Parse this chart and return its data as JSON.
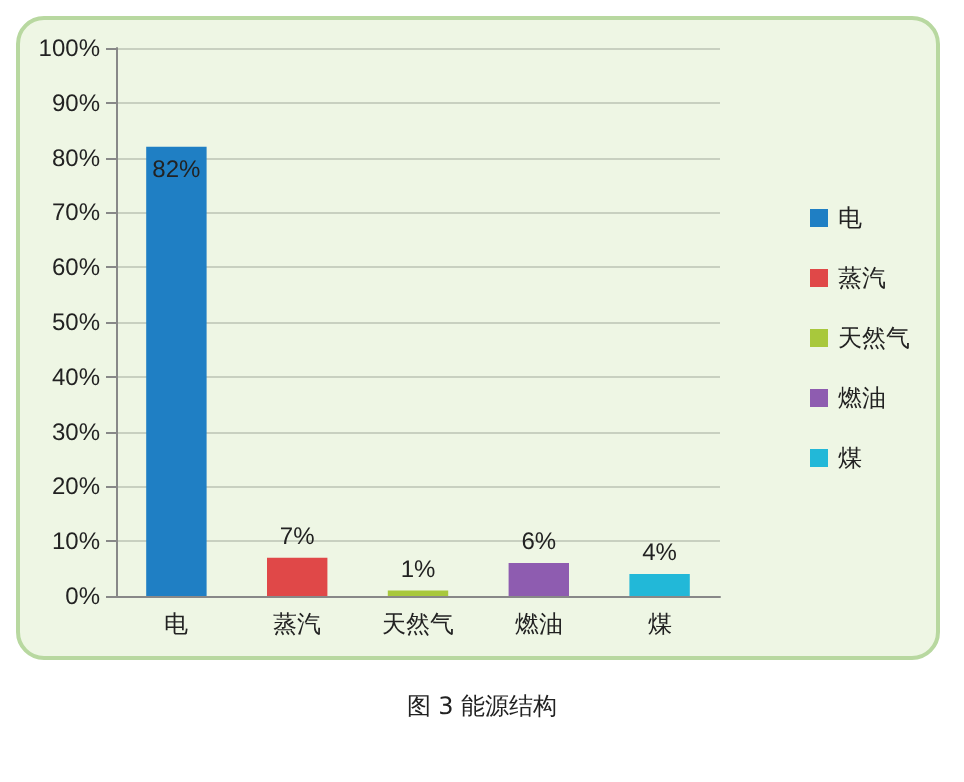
{
  "chart_data": {
    "type": "bar",
    "categories": [
      "电",
      "蒸汽",
      "天然气",
      "燃油",
      "煤"
    ],
    "series": [
      {
        "name": "电",
        "color": "#1f7fc4",
        "values": [
          82,
          null,
          null,
          null,
          null
        ],
        "value_labels": [
          "82%",
          null,
          null,
          null,
          null
        ]
      },
      {
        "name": "蒸汽",
        "color": "#e04848",
        "values": [
          null,
          7,
          null,
          null,
          null
        ],
        "value_labels": [
          null,
          "7%",
          null,
          null,
          null
        ]
      },
      {
        "name": "天然气",
        "color": "#a8c83c",
        "values": [
          null,
          null,
          1,
          null,
          null
        ],
        "value_labels": [
          null,
          null,
          "1%",
          null,
          null
        ]
      },
      {
        "name": "燃油",
        "color": "#8e5cb0",
        "values": [
          null,
          null,
          null,
          6,
          null
        ],
        "value_labels": [
          null,
          null,
          null,
          "6%",
          null
        ]
      },
      {
        "name": "煤",
        "color": "#22b8d8",
        "values": [
          null,
          null,
          null,
          null,
          4
        ],
        "value_labels": [
          null,
          null,
          null,
          null,
          "4%"
        ]
      }
    ],
    "ylim": [
      0,
      100
    ],
    "yticks": [
      {
        "value": 0,
        "label": "0%"
      },
      {
        "value": 10,
        "label": "10%"
      },
      {
        "value": 20,
        "label": "20%"
      },
      {
        "value": 30,
        "label": "30%"
      },
      {
        "value": 40,
        "label": "40%"
      },
      {
        "value": 50,
        "label": "50%"
      },
      {
        "value": 60,
        "label": "60%"
      },
      {
        "value": 70,
        "label": "70%"
      },
      {
        "value": 80,
        "label": "80%"
      },
      {
        "value": 90,
        "label": "90%"
      },
      {
        "value": 100,
        "label": "100%"
      }
    ],
    "grid": "y",
    "legend": "right",
    "annotations": [
      "图 3 能源结构"
    ]
  }
}
